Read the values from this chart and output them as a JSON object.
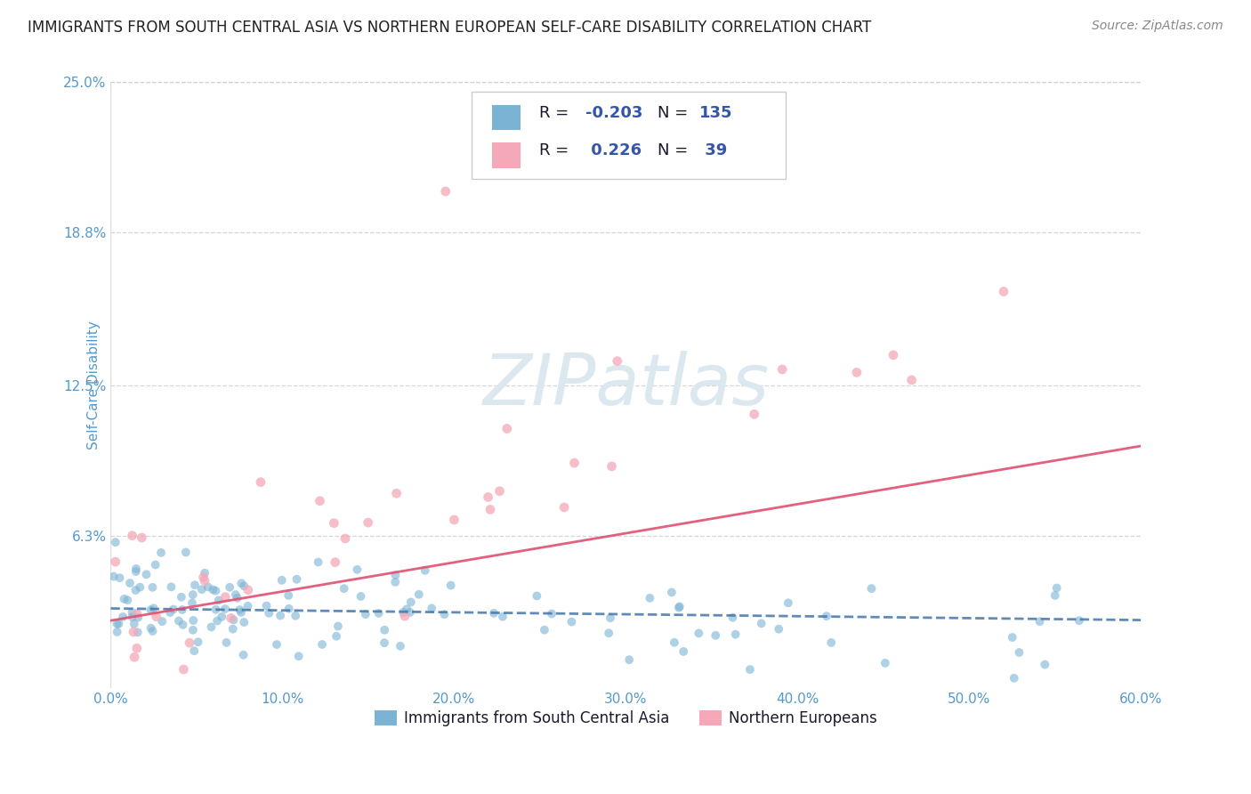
{
  "title": "IMMIGRANTS FROM SOUTH CENTRAL ASIA VS NORTHERN EUROPEAN SELF-CARE DISABILITY CORRELATION CHART",
  "source": "Source: ZipAtlas.com",
  "ylabel": "Self-Care Disability",
  "xlabel": "",
  "xlim": [
    0.0,
    0.6
  ],
  "ylim": [
    0.0,
    0.25
  ],
  "xtick_labels": [
    "0.0%",
    "10.0%",
    "20.0%",
    "30.0%",
    "40.0%",
    "50.0%",
    "60.0%"
  ],
  "xtick_vals": [
    0.0,
    0.1,
    0.2,
    0.3,
    0.4,
    0.5,
    0.6
  ],
  "ytick_labels": [
    "6.3%",
    "12.5%",
    "18.8%",
    "25.0%"
  ],
  "ytick_vals": [
    0.063,
    0.125,
    0.188,
    0.25
  ],
  "blue_color": "#7ab3d4",
  "pink_color": "#f4a8b8",
  "blue_line_color": "#4477aa",
  "pink_line_color": "#e05070",
  "blue_R": -0.203,
  "blue_N": 135,
  "pink_R": 0.226,
  "pink_N": 39,
  "title_color": "#222222",
  "source_color": "#888888",
  "tick_label_color": "#5599cc",
  "watermark": "ZIPatlas",
  "watermark_color": "#dce8f0",
  "grid_color": "#cccccc",
  "background_color": "#ffffff",
  "legend_text_color": "#1a1a2e",
  "legend_R_color": "#3355aa",
  "legend_border_color": "#cccccc"
}
